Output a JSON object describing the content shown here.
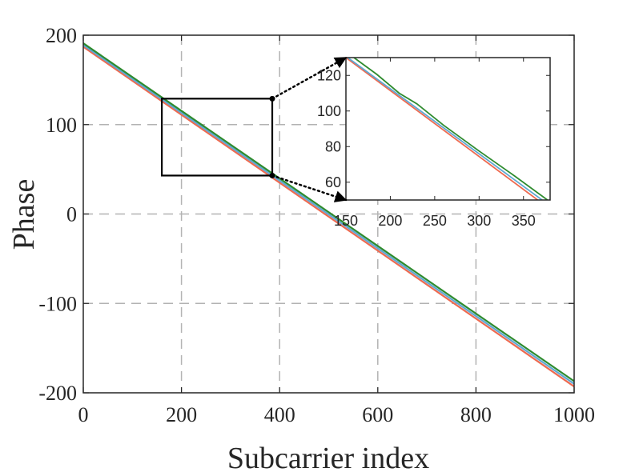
{
  "chart_data": [
    {
      "type": "line",
      "title": "",
      "xlabel": "Subcarrier index",
      "ylabel": "Phase",
      "xlim": [
        0,
        1000
      ],
      "ylim": [
        -200,
        200
      ],
      "xticks": [
        0,
        200,
        400,
        600,
        800,
        1000
      ],
      "xtick_labels": [
        "0",
        "200",
        "400",
        "600",
        "800",
        "1000"
      ],
      "yticks": [
        -200,
        -100,
        0,
        100,
        200
      ],
      "ytick_labels": [
        "-200",
        "-100",
        "0",
        "100",
        "200"
      ],
      "grid": true,
      "zoom_box": {
        "x": [
          160,
          385
        ],
        "y": [
          43,
          129
        ]
      },
      "series": [
        {
          "color": "#ee6a50",
          "x": [
            0,
            1000
          ],
          "y": [
            187,
            -193
          ]
        },
        {
          "color": "#5fa8d3",
          "x": [
            0,
            1000
          ],
          "y": [
            189,
            -190
          ]
        },
        {
          "color": "#2e8b2e",
          "x": [
            0,
            1000
          ],
          "y": [
            191,
            -187
          ]
        }
      ]
    },
    {
      "type": "line",
      "title": "",
      "xlabel": "",
      "ylabel": "",
      "xlim": [
        150,
        380
      ],
      "ylim": [
        50,
        130
      ],
      "xticks": [
        150,
        200,
        250,
        300,
        350
      ],
      "xtick_labels": [
        "150",
        "200",
        "250",
        "300",
        "350"
      ],
      "yticks": [
        60,
        80,
        100,
        120
      ],
      "ytick_labels": [
        "60",
        "80",
        "100",
        "120"
      ],
      "grid": false,
      "series": [
        {
          "color": "#ee6a50",
          "x": [
            150,
            366
          ],
          "y": [
            130,
            50
          ]
        },
        {
          "color": "#5fa8d3",
          "x": [
            152,
            371
          ],
          "y": [
            130,
            50
          ]
        },
        {
          "color": "#2e8b2e",
          "x": [
            159,
            185,
            210,
            230,
            260,
            300,
            340,
            377
          ],
          "y": [
            130,
            120.5,
            110,
            104,
            92,
            77.5,
            63.5,
            50
          ]
        }
      ]
    }
  ]
}
